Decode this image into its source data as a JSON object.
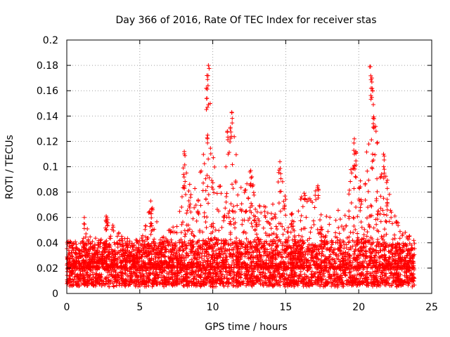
{
  "chart_data": {
    "type": "scatter",
    "title": "Day 366 of 2016, Rate Of TEC Index for receiver stas",
    "xlabel": "GPS time / hours",
    "ylabel": "ROTI / TECUs",
    "xlim": [
      0,
      25
    ],
    "ylim": [
      0,
      0.2
    ],
    "x_ticks": [
      "0",
      "5",
      "10",
      "15",
      "20",
      "25"
    ],
    "y_ticks": [
      "0",
      "0.02",
      "0.04",
      "0.06",
      "0.08",
      "0.1",
      "0.12",
      "0.14",
      "0.16",
      "0.18",
      "0.2"
    ],
    "grid": true,
    "marker": "+",
    "marker_color": "#ff0000",
    "data_extent_hours": [
      0,
      23.83
    ],
    "baseline_roti_range": [
      0.005,
      0.04
    ],
    "notable_peaks": [
      {
        "x": 9.7,
        "y": 0.18
      },
      {
        "x": 9.6,
        "y": 0.172
      },
      {
        "x": 9.6,
        "y": 0.154
      },
      {
        "x": 9.65,
        "y": 0.125
      },
      {
        "x": 11.3,
        "y": 0.143
      },
      {
        "x": 11.2,
        "y": 0.13
      },
      {
        "x": 11.0,
        "y": 0.128
      },
      {
        "x": 8.05,
        "y": 0.112
      },
      {
        "x": 8.0,
        "y": 0.094
      },
      {
        "x": 14.6,
        "y": 0.104
      },
      {
        "x": 12.6,
        "y": 0.097
      },
      {
        "x": 19.7,
        "y": 0.122
      },
      {
        "x": 19.8,
        "y": 0.112
      },
      {
        "x": 20.8,
        "y": 0.179
      },
      {
        "x": 20.9,
        "y": 0.17
      },
      {
        "x": 20.85,
        "y": 0.162
      },
      {
        "x": 21.0,
        "y": 0.149
      },
      {
        "x": 21.0,
        "y": 0.134
      },
      {
        "x": 20.95,
        "y": 0.11
      },
      {
        "x": 21.7,
        "y": 0.11
      },
      {
        "x": 21.75,
        "y": 0.098
      },
      {
        "x": 5.75,
        "y": 0.073
      },
      {
        "x": 5.8,
        "y": 0.066
      },
      {
        "x": 2.7,
        "y": 0.061
      },
      {
        "x": 1.2,
        "y": 0.06
      },
      {
        "x": 16.3,
        "y": 0.075
      },
      {
        "x": 17.2,
        "y": 0.085
      }
    ],
    "activity_envelope": [
      {
        "x": 0,
        "y": 0.046
      },
      {
        "x": 1,
        "y": 0.035
      },
      {
        "x": 1.2,
        "y": 0.06
      },
      {
        "x": 2,
        "y": 0.04
      },
      {
        "x": 2.7,
        "y": 0.061
      },
      {
        "x": 3.5,
        "y": 0.05
      },
      {
        "x": 4.5,
        "y": 0.038
      },
      {
        "x": 5.2,
        "y": 0.055
      },
      {
        "x": 5.8,
        "y": 0.07
      },
      {
        "x": 6.5,
        "y": 0.045
      },
      {
        "x": 7.5,
        "y": 0.055
      },
      {
        "x": 8.0,
        "y": 0.11
      },
      {
        "x": 8.6,
        "y": 0.08
      },
      {
        "x": 9.3,
        "y": 0.105
      },
      {
        "x": 9.7,
        "y": 0.18
      },
      {
        "x": 10.3,
        "y": 0.09
      },
      {
        "x": 10.7,
        "y": 0.085
      },
      {
        "x": 11.3,
        "y": 0.143
      },
      {
        "x": 11.8,
        "y": 0.088
      },
      {
        "x": 12.6,
        "y": 0.097
      },
      {
        "x": 13.3,
        "y": 0.07
      },
      {
        "x": 14.0,
        "y": 0.07
      },
      {
        "x": 14.6,
        "y": 0.104
      },
      {
        "x": 15.2,
        "y": 0.06
      },
      {
        "x": 16.0,
        "y": 0.077
      },
      {
        "x": 17.0,
        "y": 0.085
      },
      {
        "x": 17.8,
        "y": 0.062
      },
      {
        "x": 18.5,
        "y": 0.07
      },
      {
        "x": 19.2,
        "y": 0.08
      },
      {
        "x": 19.7,
        "y": 0.122
      },
      {
        "x": 20.3,
        "y": 0.075
      },
      {
        "x": 20.8,
        "y": 0.179
      },
      {
        "x": 21.3,
        "y": 0.12
      },
      {
        "x": 21.7,
        "y": 0.11
      },
      {
        "x": 22.3,
        "y": 0.065
      },
      {
        "x": 23.0,
        "y": 0.05
      },
      {
        "x": 23.83,
        "y": 0.045
      }
    ]
  }
}
